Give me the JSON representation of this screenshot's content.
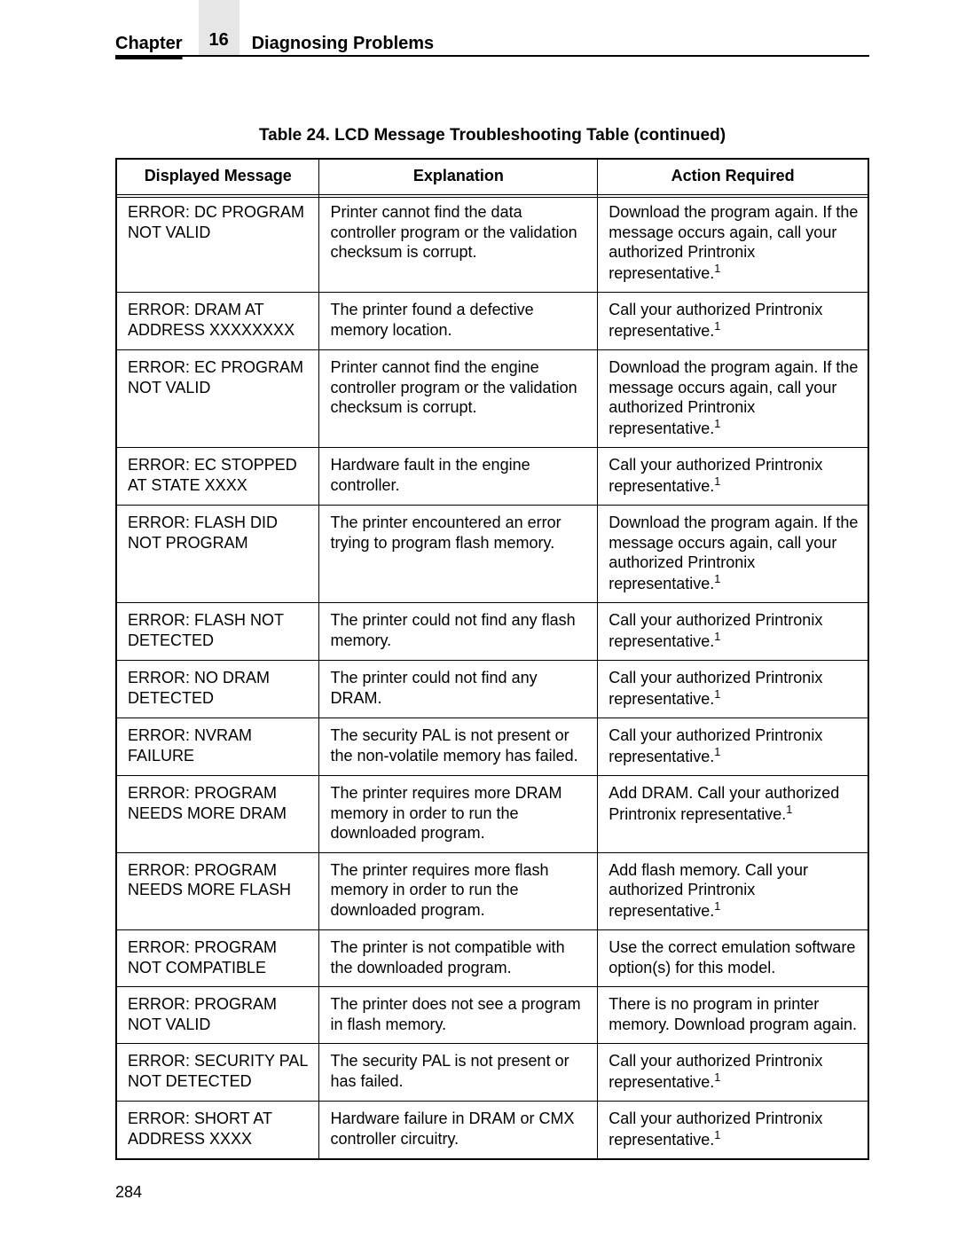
{
  "header": {
    "chapter_label": "Chapter",
    "chapter_number": "16",
    "chapter_title": "Diagnosing Problems"
  },
  "table": {
    "caption": "Table 24. LCD Message Troubleshooting Table (continued)",
    "columns": [
      "Displayed Message",
      "Explanation",
      "Action Required"
    ],
    "col_widths_pct": [
      27,
      37,
      36
    ],
    "border_color": "#000000",
    "background_color": "#ffffff",
    "header_fontsize": 18,
    "cell_fontsize": 18,
    "rows": [
      {
        "msg": "ERROR: DC PROGRAM NOT VALID",
        "explanation": "Printer cannot find the data controller program or the validation checksum is corrupt.",
        "action": "Download the program again. If the message occurs again, call your authorized Printronix representative.",
        "action_sup": "1"
      },
      {
        "msg": "ERROR: DRAM AT ADDRESS XXXXXXXX",
        "explanation": "The printer found a defective memory location.",
        "action": "Call your authorized Printronix representative.",
        "action_sup": "1"
      },
      {
        "msg": "ERROR: EC PROGRAM NOT VALID",
        "explanation": "Printer cannot find the engine controller program or the validation checksum is corrupt.",
        "action": "Download the program again. If the message occurs again, call your authorized Printronix representative.",
        "action_sup": "1"
      },
      {
        "msg": "ERROR: EC STOPPED AT STATE XXXX",
        "explanation": "Hardware fault in the engine controller.",
        "action": "Call your authorized Printronix representative.",
        "action_sup": "1"
      },
      {
        "msg": "ERROR: FLASH DID NOT PROGRAM",
        "explanation": "The printer encountered an error trying to program flash memory.",
        "action": "Download the program again. If the message occurs again, call your authorized Printronix representative.",
        "action_sup": "1"
      },
      {
        "msg": "ERROR: FLASH NOT DETECTED",
        "explanation": "The printer could not find any flash memory.",
        "action": "Call your authorized Printronix representative.",
        "action_sup": "1"
      },
      {
        "msg": "ERROR: NO DRAM DETECTED",
        "explanation": "The printer could not find any DRAM.",
        "action": "Call your authorized Printronix representative.",
        "action_sup": "1"
      },
      {
        "msg": "ERROR: NVRAM FAILURE",
        "explanation": "The security PAL is not present or the non-volatile memory has failed.",
        "action": "Call your authorized Printronix representative.",
        "action_sup": "1"
      },
      {
        "msg": "ERROR: PROGRAM NEEDS MORE DRAM",
        "explanation": "The printer requires more DRAM memory in order to run the downloaded program.",
        "action": "Add DRAM. Call your authorized Printronix representative.",
        "action_sup": "1"
      },
      {
        "msg": "ERROR: PROGRAM NEEDS MORE FLASH",
        "explanation": "The printer requires more flash memory in order to run the downloaded program.",
        "action": "Add flash memory. Call your authorized Printronix representative.",
        "action_sup": "1"
      },
      {
        "msg": "ERROR: PROGRAM NOT COMPATIBLE",
        "explanation": "The printer is not compatible with the downloaded program.",
        "action": "Use the correct emulation software option(s) for this model.",
        "action_sup": ""
      },
      {
        "msg": "ERROR: PROGRAM NOT VALID",
        "explanation": "The printer does not see a program in flash memory.",
        "action": "There is no program in printer memory. Download program again.",
        "action_sup": ""
      },
      {
        "msg": "ERROR: SECURITY PAL NOT DETECTED",
        "explanation": "The security PAL is not present or has failed.",
        "action": "Call your authorized Printronix representative.",
        "action_sup": "1"
      },
      {
        "msg": "ERROR: SHORT AT ADDRESS XXXX",
        "explanation": "Hardware failure in DRAM or CMX controller circuitry.",
        "action": "Call your authorized Printronix representative.",
        "action_sup": "1"
      }
    ]
  },
  "page_number": "284"
}
